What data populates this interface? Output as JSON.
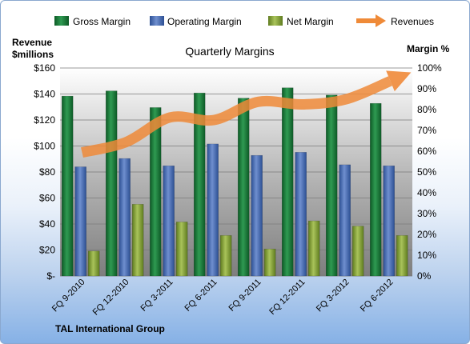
{
  "chart_data": {
    "type": "bar",
    "title": "Quarterly Margins",
    "footer": "TAL International Group",
    "ylabel_left_line1": "Revenue",
    "ylabel_left_line2": "$millions",
    "ylabel_right": "Margin %",
    "categories": [
      "FQ 9-2010",
      "FQ 12-2010",
      "FQ 3-2011",
      "FQ 6-2011",
      "FQ 9-2011",
      "FQ 12-2011",
      "FQ 3-2012",
      "FQ 6-2012"
    ],
    "left_axis": {
      "min": 0,
      "max": 160,
      "step": 20,
      "ticks": [
        "$-",
        "$20",
        "$40",
        "$60",
        "$80",
        "$100",
        "$120",
        "$140",
        "$160"
      ]
    },
    "right_axis": {
      "min": 0,
      "max": 100,
      "step": 10,
      "ticks": [
        "0%",
        "10%",
        "20%",
        "30%",
        "40%",
        "50%",
        "60%",
        "70%",
        "80%",
        "90%",
        "100%"
      ]
    },
    "grid": true,
    "legend_position": "top",
    "series": [
      {
        "name": "Gross Margin",
        "type": "bar",
        "axis": "right",
        "color": "#1e7b3c",
        "values": [
          86.5,
          89,
          81,
          88,
          85.5,
          90.5,
          87,
          83
        ]
      },
      {
        "name": "Operating Margin",
        "type": "bar",
        "axis": "right",
        "color": "#4a6fb5",
        "values": [
          52.5,
          56.5,
          53,
          63.5,
          58,
          59.5,
          53.5,
          53
        ]
      },
      {
        "name": "Net Margin",
        "type": "bar",
        "axis": "right",
        "color": "#8fad3c",
        "values": [
          12,
          34.5,
          26,
          19.5,
          13,
          26.5,
          24,
          19.5
        ]
      },
      {
        "name": "Revenues",
        "type": "line",
        "axis": "left",
        "color": "#ef8a38",
        "values": [
          95,
          103,
          122,
          120,
          134,
          132,
          136,
          150
        ]
      }
    ]
  }
}
